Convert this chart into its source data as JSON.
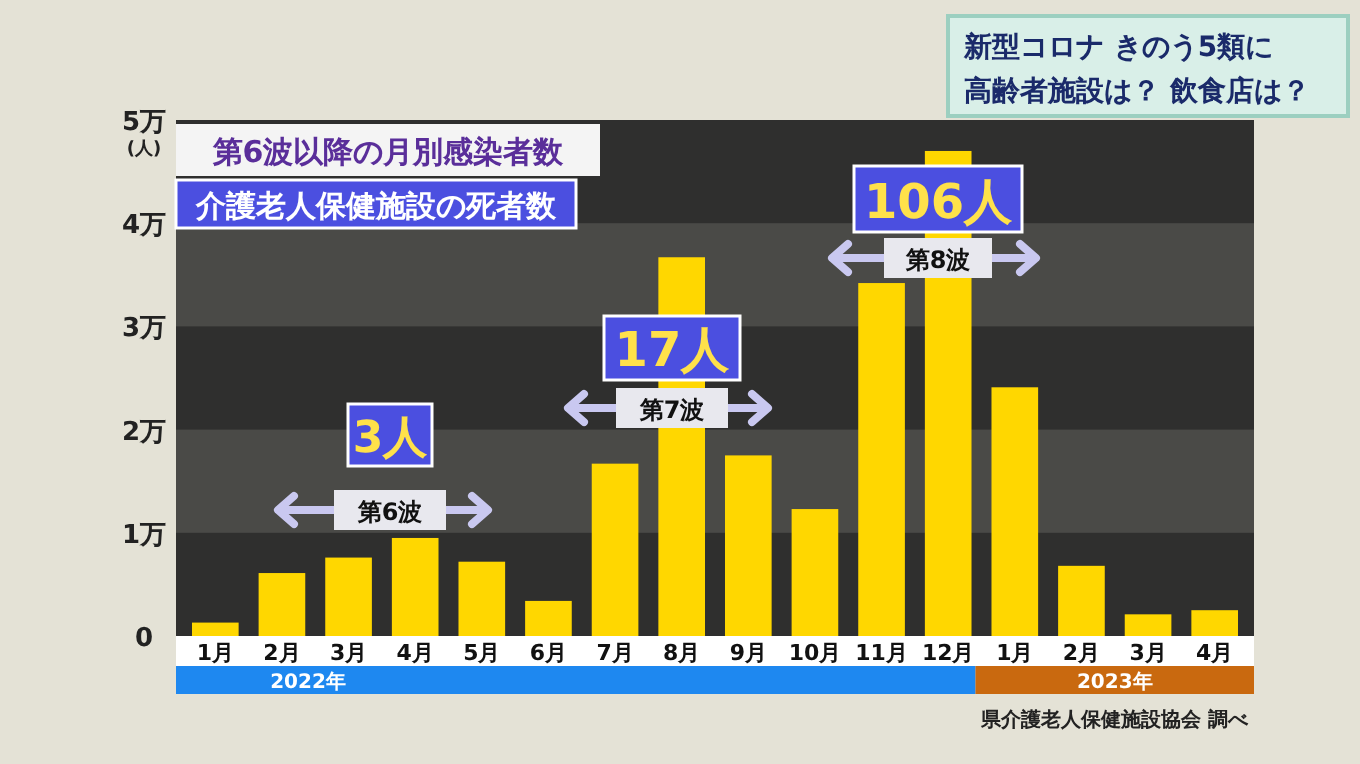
{
  "chart_data": {
    "type": "bar",
    "title": "第6波以降の月別感染者数",
    "subtitle": "介護老人保健施設の死者数",
    "ylabel": "(人)",
    "categories": [
      "1月",
      "2月",
      "3月",
      "4月",
      "5月",
      "6月",
      "7月",
      "8月",
      "9月",
      "10月",
      "11月",
      "12月",
      "1月",
      "2月",
      "3月",
      "4月"
    ],
    "values": [
      0.13,
      0.61,
      0.76,
      0.95,
      0.72,
      0.34,
      1.67,
      3.67,
      1.75,
      1.23,
      3.42,
      4.7,
      2.41,
      0.68,
      0.21,
      0.25
    ],
    "color": "#ffd700",
    "ylim": [
      0,
      5
    ],
    "yticks": [
      0,
      {
        "value": 1,
        "label": "1万"
      },
      {
        "value": 2,
        "label": "2万"
      },
      {
        "value": 3,
        "label": "3万"
      },
      {
        "value": 4,
        "label": "4万"
      },
      {
        "value": 5,
        "label": "5万"
      }
    ],
    "annotations": [
      "新型コロナ きのう5類に",
      "高齢者施設は？ 飲食店は？",
      "3人",
      "第6波",
      "17人",
      "第7波",
      "106人",
      "第8波",
      "2022年",
      "2023年",
      "県介護老人保健施設協会 調べ"
    ]
  }
}
